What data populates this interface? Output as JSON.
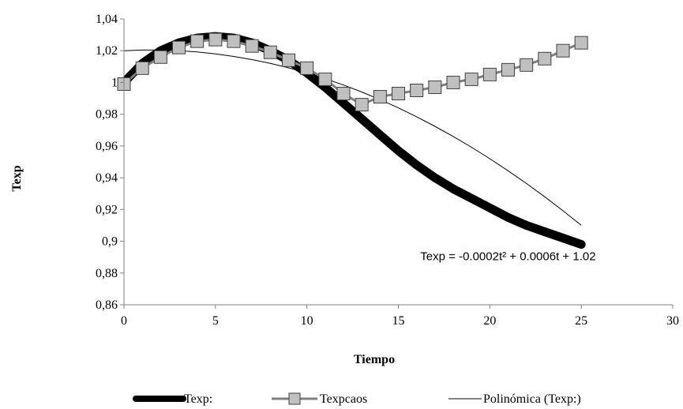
{
  "chart_data": {
    "type": "line",
    "xlabel": "Tiempo",
    "ylabel": "Texp",
    "xlim": [
      0,
      30
    ],
    "ylim": [
      0.86,
      1.04
    ],
    "xticks": [
      0,
      5,
      10,
      15,
      20,
      25,
      30
    ],
    "yticks": [
      "0,86",
      "0,88",
      "0,9",
      "0,92",
      "0,94",
      "0,96",
      "0,98",
      "1",
      "1,02",
      "1,04"
    ],
    "yticks_values": [
      0.86,
      0.88,
      0.9,
      0.92,
      0.94,
      0.96,
      0.98,
      1.0,
      1.02,
      1.04
    ],
    "grid": false,
    "legend_position": "bottom",
    "series": [
      {
        "name": "Texp:",
        "style": "thick-line",
        "color": "#000000",
        "x": [
          0,
          1,
          2,
          3,
          4,
          5,
          6,
          7,
          8,
          9,
          10,
          11,
          12,
          13,
          14,
          15,
          16,
          17,
          18,
          19,
          20,
          21,
          22,
          23,
          24,
          25
        ],
        "y": [
          1.0,
          1.012,
          1.02,
          1.025,
          1.028,
          1.029,
          1.028,
          1.025,
          1.02,
          1.014,
          1.006,
          0.997,
          0.987,
          0.977,
          0.967,
          0.957,
          0.948,
          0.94,
          0.933,
          0.927,
          0.921,
          0.915,
          0.91,
          0.906,
          0.902,
          0.898
        ]
      },
      {
        "name": "Texpcaos",
        "style": "line-square-markers",
        "color": "#808080",
        "x": [
          0,
          1,
          2,
          3,
          4,
          5,
          6,
          7,
          8,
          9,
          10,
          11,
          12,
          13,
          14,
          15,
          16,
          17,
          18,
          19,
          20,
          21,
          22,
          23,
          24,
          25
        ],
        "y": [
          0.999,
          1.009,
          1.016,
          1.022,
          1.026,
          1.027,
          1.026,
          1.023,
          1.019,
          1.014,
          1.009,
          1.002,
          0.993,
          0.986,
          0.991,
          0.993,
          0.995,
          0.997,
          1.0,
          1.002,
          1.005,
          1.008,
          1.011,
          1.015,
          1.02,
          1.025
        ]
      },
      {
        "name": "Polinómica (Texp:)",
        "style": "thin-line",
        "color": "#000000",
        "x": [
          0,
          1,
          2,
          3,
          4,
          5,
          6,
          7,
          8,
          9,
          10,
          11,
          12,
          13,
          14,
          15,
          16,
          17,
          18,
          19,
          20,
          21,
          22,
          23,
          24,
          25
        ],
        "y": [
          1.02,
          1.0204,
          1.0204,
          1.02,
          1.0192,
          1.018,
          1.0164,
          1.0144,
          1.012,
          1.0092,
          1.006,
          1.0024,
          0.9984,
          0.994,
          0.9892,
          0.984,
          0.9784,
          0.9724,
          0.966,
          0.9592,
          0.952,
          0.9444,
          0.9364,
          0.928,
          0.9192,
          0.91
        ]
      }
    ],
    "annotations": [
      {
        "text": "Texp = -0.0002t² + 0.0006t + 1.02",
        "x": 16.2,
        "y": 0.888
      }
    ]
  }
}
